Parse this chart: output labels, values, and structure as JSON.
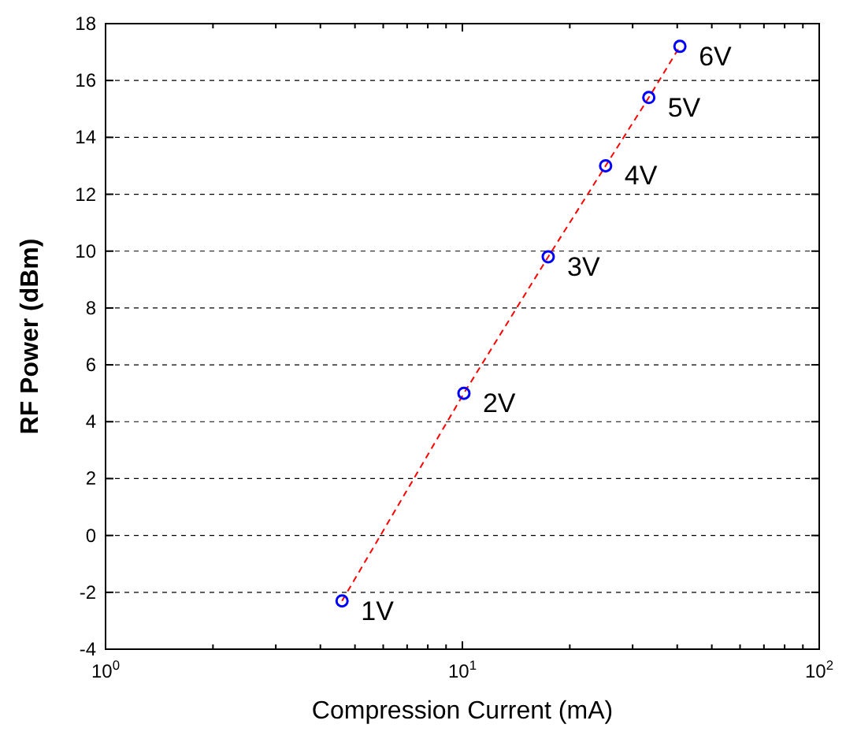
{
  "chart_data": {
    "type": "scatter",
    "xlabel": "Compression Current (mA)",
    "ylabel": "RF Power (dBm)",
    "log": "x",
    "grid": "y",
    "xlim": [
      1,
      100
    ],
    "xticks": [
      {
        "value": 1,
        "label": "10$^{0}$"
      },
      {
        "value": 2,
        "label": null
      },
      {
        "value": 3,
        "label": null
      },
      {
        "value": 4,
        "label": null
      },
      {
        "value": 5,
        "label": null
      },
      {
        "value": 6,
        "label": null
      },
      {
        "value": 7,
        "label": null
      },
      {
        "value": 8,
        "label": null
      },
      {
        "value": 9,
        "label": null
      },
      {
        "value": 10,
        "label": "10$^{1}$"
      },
      {
        "value": 20,
        "label": null
      },
      {
        "value": 30,
        "label": null
      },
      {
        "value": 40,
        "label": null
      },
      {
        "value": 50,
        "label": null
      },
      {
        "value": 60,
        "label": null
      },
      {
        "value": 70,
        "label": null
      },
      {
        "value": 80,
        "label": null
      },
      {
        "value": 90,
        "label": null
      },
      {
        "value": 100,
        "label": "10$^{2}$"
      }
    ],
    "ylim": [
      -4,
      18
    ],
    "yticks": [
      -4,
      -2,
      0,
      2,
      4,
      6,
      8,
      10,
      12,
      14,
      16,
      18
    ],
    "series": [
      {
        "type": "line",
        "color": "#ff0000",
        "line_style": "dashed",
        "marker": "none",
        "x": [
          4.6,
          10.1,
          17.4,
          25.2,
          33.3,
          40.7
        ],
        "values": [
          -2.3,
          5.0,
          9.8,
          13.0,
          15.4,
          17.2
        ]
      },
      {
        "color": "#0000ff",
        "marker": "circle",
        "x": [
          4.6,
          10.1,
          17.4,
          25.2,
          33.3,
          40.7
        ],
        "values": [
          -2.3,
          5.0,
          9.8,
          13.0,
          15.4,
          17.2
        ]
      }
    ],
    "annotations": [
      {
        "text": "1V",
        "x": 4.6,
        "y": -2.3
      },
      {
        "text": "2V",
        "x": 10.1,
        "y": 5.0
      },
      {
        "text": "3V",
        "x": 17.4,
        "y": 9.8
      },
      {
        "text": "4V",
        "x": 25.2,
        "y": 13.0
      },
      {
        "text": "5V",
        "x": 33.3,
        "y": 15.4
      },
      {
        "text": "6V",
        "x": 40.7,
        "y": 17.2
      }
    ]
  }
}
